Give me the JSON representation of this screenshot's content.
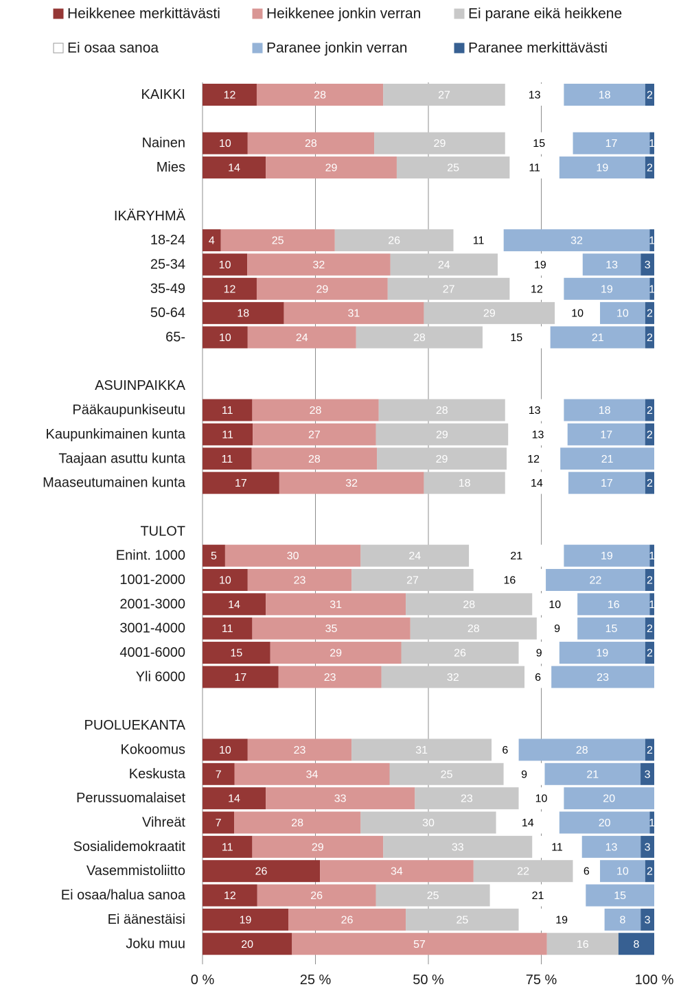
{
  "chart_data": {
    "type": "bar",
    "orientation": "horizontal",
    "stacked": "percent",
    "xlim": [
      0,
      100
    ],
    "x_ticks": [
      "0 %",
      "25 %",
      "50 %",
      "75 %",
      "100 %"
    ],
    "grid": "vertical",
    "legend_position": "top",
    "colors": [
      "#953735",
      "#D99694",
      "#C8C8C8",
      "#FFFFFF",
      "#95B3D7",
      "#376092"
    ],
    "series": [
      {
        "name": "Heikkenee merkittävästi"
      },
      {
        "name": "Heikkenee jonkin verran"
      },
      {
        "name": "Ei parane eikä heikkene"
      },
      {
        "name": "Ei osaa sanoa"
      },
      {
        "name": "Paranee jonkin verran"
      },
      {
        "name": "Paranee merkittävästi"
      }
    ],
    "groups": [
      {
        "header": "",
        "rows": [
          {
            "label": "KAIKKI",
            "values": [
              12,
              28,
              27,
              13,
              18,
              2
            ]
          }
        ]
      },
      {
        "header": "",
        "rows": [
          {
            "label": "Nainen",
            "values": [
              10,
              28,
              29,
              15,
              17,
              1
            ]
          },
          {
            "label": "Mies",
            "values": [
              14,
              29,
              25,
              11,
              19,
              2
            ]
          }
        ]
      },
      {
        "header": "IKÄRYHMÄ",
        "rows": [
          {
            "label": "18-24",
            "values": [
              4,
              25,
              26,
              11,
              32,
              1
            ]
          },
          {
            "label": "25-34",
            "values": [
              10,
              32,
              24,
              19,
              13,
              3
            ]
          },
          {
            "label": "35-49",
            "values": [
              12,
              29,
              27,
              12,
              19,
              1
            ]
          },
          {
            "label": "50-64",
            "values": [
              18,
              31,
              29,
              10,
              10,
              2
            ]
          },
          {
            "label": "65-",
            "values": [
              10,
              24,
              28,
              15,
              21,
              2
            ]
          }
        ]
      },
      {
        "header": "ASUINPAIKKA",
        "rows": [
          {
            "label": "Pääkaupunkiseutu",
            "values": [
              11,
              28,
              28,
              13,
              18,
              2
            ]
          },
          {
            "label": "Kaupunkimainen kunta",
            "values": [
              11,
              27,
              29,
              13,
              17,
              2
            ]
          },
          {
            "label": "Taajaan asuttu kunta",
            "values": [
              11,
              28,
              29,
              12,
              21,
              0
            ]
          },
          {
            "label": "Maaseutumainen kunta",
            "values": [
              17,
              32,
              18,
              14,
              17,
              2
            ]
          }
        ]
      },
      {
        "header": "TULOT",
        "rows": [
          {
            "label": "Enint. 1000",
            "values": [
              5,
              30,
              24,
              21,
              19,
              1
            ]
          },
          {
            "label": "1001-2000",
            "values": [
              10,
              23,
              27,
              16,
              22,
              2
            ]
          },
          {
            "label": "2001-3000",
            "values": [
              14,
              31,
              28,
              10,
              16,
              1
            ]
          },
          {
            "label": "3001-4000",
            "values": [
              11,
              35,
              28,
              9,
              15,
              2
            ]
          },
          {
            "label": "4001-6000",
            "values": [
              15,
              29,
              26,
              9,
              19,
              2
            ]
          },
          {
            "label": "Yli 6000",
            "values": [
              17,
              23,
              32,
              6,
              23,
              0
            ]
          }
        ]
      },
      {
        "header": "PUOLUEKANTA",
        "rows": [
          {
            "label": "Kokoomus",
            "values": [
              10,
              23,
              31,
              6,
              28,
              2
            ]
          },
          {
            "label": "Keskusta",
            "values": [
              7,
              34,
              25,
              9,
              21,
              3
            ]
          },
          {
            "label": "Perussuomalaiset",
            "values": [
              14,
              33,
              23,
              10,
              20,
              0
            ]
          },
          {
            "label": "Vihreät",
            "values": [
              7,
              28,
              30,
              14,
              20,
              1
            ]
          },
          {
            "label": "Sosialidemokraatit",
            "values": [
              11,
              29,
              33,
              11,
              13,
              3
            ]
          },
          {
            "label": "Vasemmistoliitto",
            "values": [
              26,
              34,
              22,
              6,
              10,
              2
            ]
          },
          {
            "label": "Ei osaa/halua sanoa",
            "values": [
              12,
              26,
              25,
              21,
              15,
              0
            ]
          },
          {
            "label": "Ei äänestäisi",
            "values": [
              19,
              26,
              25,
              19,
              8,
              3
            ]
          },
          {
            "label": "Joku muu",
            "values": [
              20,
              57,
              16,
              0,
              0,
              8
            ]
          }
        ]
      }
    ]
  }
}
